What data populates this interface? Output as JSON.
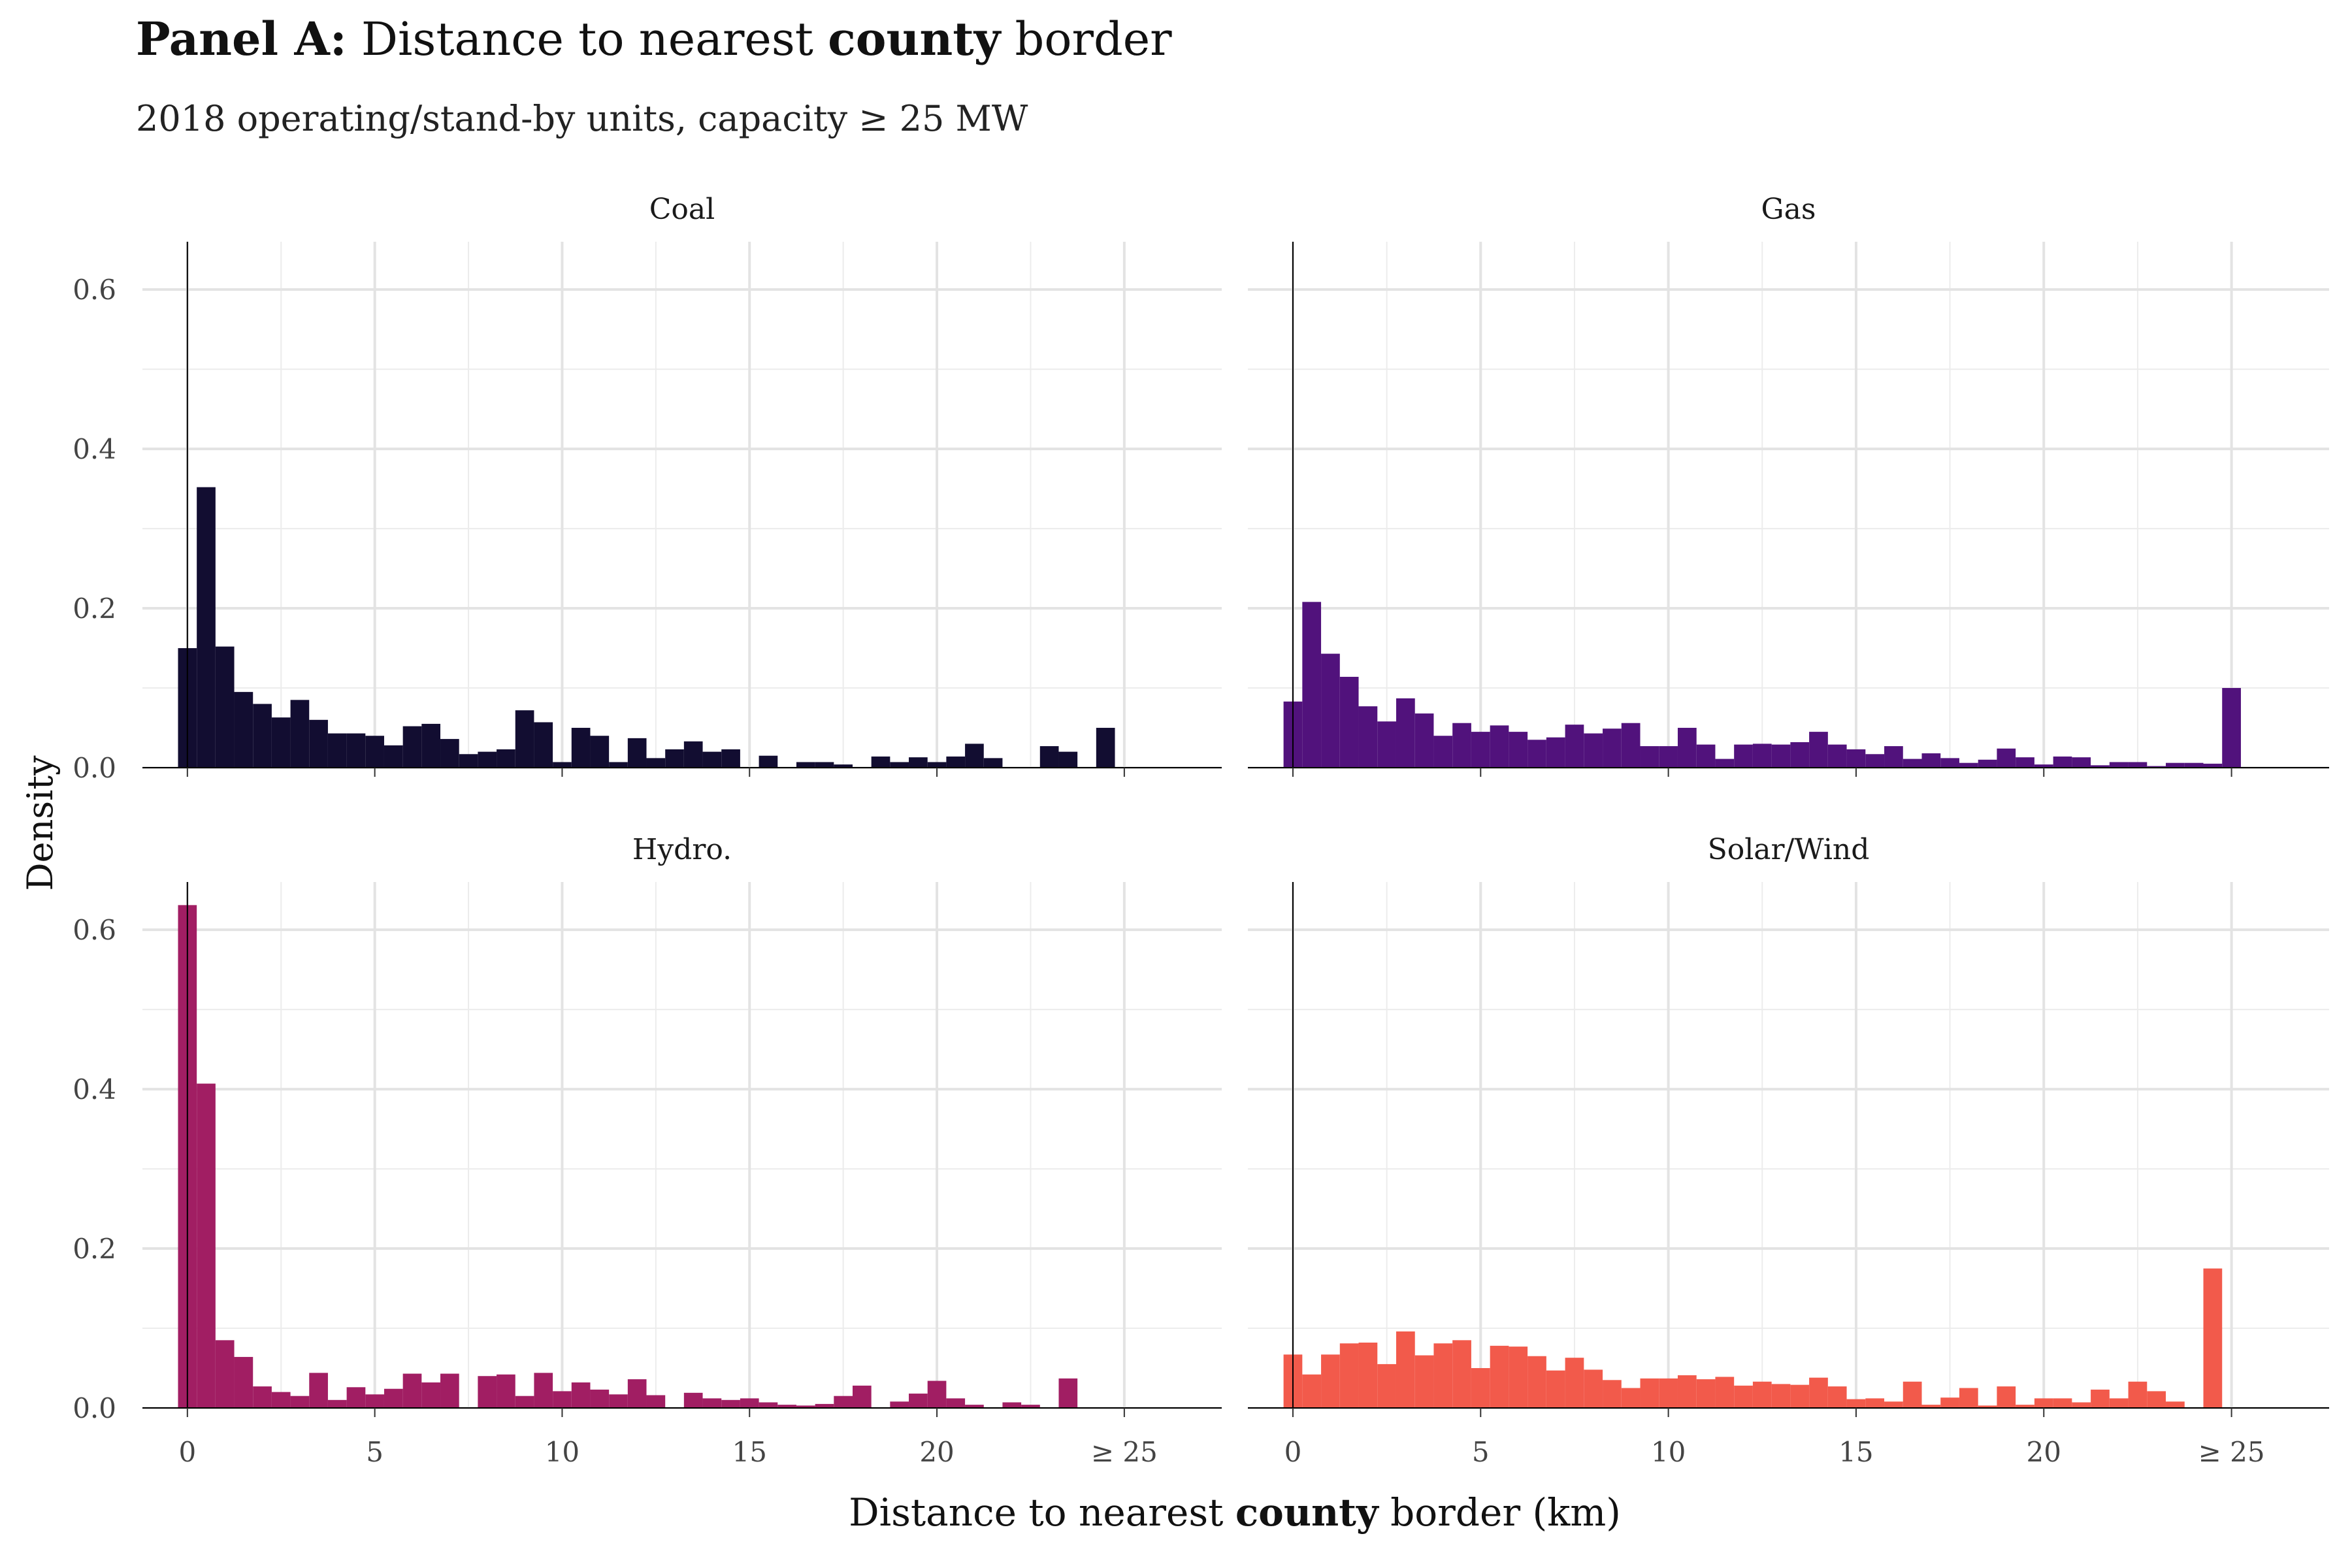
{
  "title": {
    "prefix": "Panel A:",
    "part1": "Distance to nearest",
    "bold_word": "county",
    "part2": "border"
  },
  "subtitle": "2018 operating/stand-by units, capacity ≥ 25 MW",
  "chart_data": {
    "type": "bar",
    "ylabel": "Density",
    "xlabel": {
      "part1": "Distance to nearest",
      "bold_word": "county",
      "part2": "border (km)"
    },
    "xlim": [
      -1.2,
      27.6
    ],
    "ylim": [
      0,
      0.66
    ],
    "x_ticks": [
      0,
      5,
      10,
      15,
      20,
      25
    ],
    "x_tick_labels": [
      "0",
      "5",
      "10",
      "15",
      "20",
      "≥ 25"
    ],
    "y_ticks": [
      0,
      0.2,
      0.4,
      0.6
    ],
    "y_tick_labels": [
      "0.0",
      "0.2",
      "0.4",
      "0.6"
    ],
    "grid": true,
    "bin_width": 0.5,
    "bin_start": -0.25,
    "facets": [
      {
        "name": "Coal",
        "color": "#120d31",
        "values": [
          0.15,
          0.352,
          0.152,
          0.095,
          0.08,
          0.063,
          0.085,
          0.06,
          0.043,
          0.043,
          0.04,
          0.028,
          0.052,
          0.055,
          0.036,
          0.017,
          0.02,
          0.023,
          0.072,
          0.057,
          0.007,
          0.05,
          0.04,
          0.007,
          0.037,
          0.012,
          0.023,
          0.033,
          0.02,
          0.023,
          0,
          0.015,
          0,
          0.007,
          0.007,
          0.004,
          0,
          0.014,
          0.007,
          0.013,
          0.007,
          0.014,
          0.03,
          0.012,
          0,
          0,
          0.027,
          0.02,
          0,
          0.05
        ]
      },
      {
        "name": "Gas",
        "color": "#51127c",
        "values": [
          0.083,
          0.208,
          0.143,
          0.114,
          0.077,
          0.058,
          0.087,
          0.068,
          0.04,
          0.056,
          0.045,
          0.053,
          0.045,
          0.035,
          0.038,
          0.054,
          0.043,
          0.049,
          0.056,
          0.027,
          0.027,
          0.05,
          0.029,
          0.011,
          0.029,
          0.03,
          0.029,
          0.032,
          0.045,
          0.029,
          0.023,
          0.017,
          0.027,
          0.011,
          0.018,
          0.012,
          0.006,
          0.01,
          0.024,
          0.013,
          0.004,
          0.014,
          0.013,
          0.003,
          0.007,
          0.007,
          0.002,
          0.006,
          0.006,
          0.005,
          0.1
        ]
      },
      {
        "name": "Hydro.",
        "color": "#a11e63",
        "values": [
          0.631,
          0.407,
          0.085,
          0.064,
          0.027,
          0.02,
          0.015,
          0.044,
          0.01,
          0.026,
          0.017,
          0.024,
          0.043,
          0.032,
          0.043,
          0,
          0.04,
          0.042,
          0.015,
          0.044,
          0.021,
          0.032,
          0.023,
          0.017,
          0.036,
          0.016,
          0,
          0.019,
          0.012,
          0.01,
          0.012,
          0.007,
          0.004,
          0.003,
          0.005,
          0.015,
          0.028,
          0,
          0.008,
          0.018,
          0.034,
          0.012,
          0.004,
          0,
          0.007,
          0.004,
          0,
          0.037
        ]
      },
      {
        "name": "Solar/Wind",
        "color": "#f25a4b",
        "values": [
          0.067,
          0.042,
          0.067,
          0.081,
          0.082,
          0.055,
          0.096,
          0.066,
          0.081,
          0.085,
          0.05,
          0.078,
          0.077,
          0.065,
          0.047,
          0.063,
          0.048,
          0.035,
          0.025,
          0.037,
          0.037,
          0.041,
          0.036,
          0.039,
          0.028,
          0.033,
          0.03,
          0.029,
          0.038,
          0.027,
          0.011,
          0.012,
          0.008,
          0.033,
          0.004,
          0.013,
          0.025,
          0.003,
          0.027,
          0.004,
          0.012,
          0.012,
          0.007,
          0.023,
          0.012,
          0.033,
          0.021,
          0.008,
          0,
          0.175
        ]
      }
    ]
  }
}
